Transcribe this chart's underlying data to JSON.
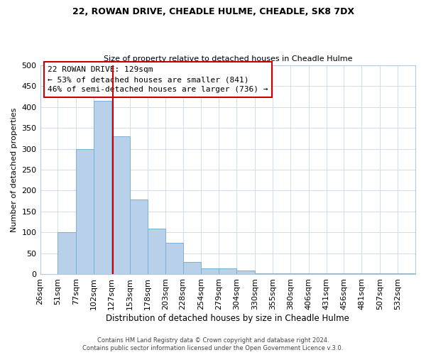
{
  "title": "22, ROWAN DRIVE, CHEADLE HULME, CHEADLE, SK8 7DX",
  "subtitle": "Size of property relative to detached houses in Cheadle Hulme",
  "xlabel": "Distribution of detached houses by size in Cheadle Hulme",
  "ylabel": "Number of detached properties",
  "bin_labels": [
    "26sqm",
    "51sqm",
    "77sqm",
    "102sqm",
    "127sqm",
    "153sqm",
    "178sqm",
    "203sqm",
    "228sqm",
    "254sqm",
    "279sqm",
    "304sqm",
    "330sqm",
    "355sqm",
    "380sqm",
    "406sqm",
    "431sqm",
    "456sqm",
    "481sqm",
    "507sqm",
    "532sqm"
  ],
  "bin_edges": [
    26,
    51,
    77,
    102,
    127,
    153,
    178,
    203,
    228,
    254,
    279,
    304,
    330,
    355,
    380,
    406,
    431,
    456,
    481,
    507,
    532,
    557
  ],
  "counts": [
    0,
    100,
    300,
    415,
    330,
    178,
    110,
    75,
    30,
    15,
    15,
    10,
    3,
    3,
    3,
    3,
    3,
    3,
    3,
    3,
    3
  ],
  "bar_color": "#b8d0ea",
  "bar_edge_color": "#7aafd4",
  "property_line_x": 129,
  "annotation_title": "22 ROWAN DRIVE: 129sqm",
  "annotation_line1": "← 53% of detached houses are smaller (841)",
  "annotation_line2": "46% of semi-detached houses are larger (736) →",
  "annotation_box_color": "#ffffff",
  "annotation_box_edge_color": "#cc0000",
  "property_line_color": "#cc0000",
  "ylim": [
    0,
    500
  ],
  "footer1": "Contains HM Land Registry data © Crown copyright and database right 2024.",
  "footer2": "Contains public sector information licensed under the Open Government Licence v.3.0.",
  "grid_color": "#c8d8ee",
  "spine_color": "#b0c8e0"
}
